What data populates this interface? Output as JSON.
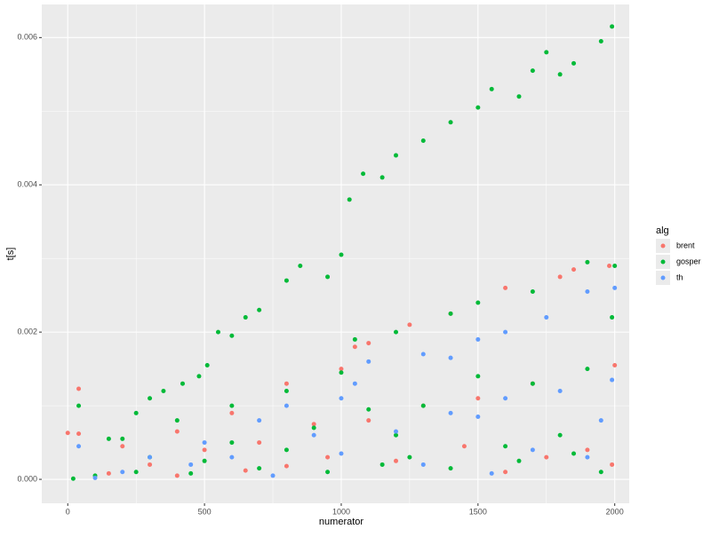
{
  "chart_data": {
    "type": "scatter",
    "x_label": "numerator",
    "y_label": "t[s]",
    "legend_title": "alg",
    "legend_position": "right",
    "xlim": [
      -95,
      2053
    ],
    "xticks": [
      0,
      500,
      1000,
      1500,
      2000
    ],
    "x_minor_ticks": [
      250,
      750,
      1250,
      1750
    ],
    "ylim": [
      -0.000325,
      0.00645
    ],
    "yticks": [
      {
        "value": 0,
        "label": "0.000"
      },
      0.002,
      0.004,
      0.006
    ],
    "y_minor_ticks": [
      0.001,
      0.003,
      0.005
    ],
    "grid": true,
    "series": [
      {
        "name": "brent",
        "color": "#F8766D",
        "x": [
          0,
          40,
          40,
          200,
          400,
          600,
          800,
          1000,
          1050,
          1100,
          1250,
          1400,
          1600,
          1800,
          1980,
          1850,
          500,
          900,
          1300,
          1700,
          2000,
          1500,
          1100,
          700,
          300,
          150,
          650,
          1200,
          1750,
          1900,
          950,
          1450,
          400,
          1600,
          800,
          1990
        ],
        "values": [
          0.00063,
          0.00123,
          0.00062,
          0.00045,
          0.00065,
          0.0009,
          0.0013,
          0.0015,
          0.0018,
          0.00185,
          0.0021,
          0.00225,
          0.0026,
          0.00275,
          0.0029,
          0.00285,
          0.0004,
          0.00075,
          0.001,
          0.0013,
          0.00155,
          0.0011,
          0.0008,
          0.0005,
          0.0002,
          8e-05,
          0.00012,
          0.00025,
          0.0003,
          0.0004,
          0.0003,
          0.00045,
          5e-05,
          0.0001,
          0.00018,
          0.0002
        ]
      },
      {
        "name": "gosper",
        "color": "#00BA38",
        "x": [
          40,
          150,
          250,
          300,
          350,
          420,
          480,
          510,
          550,
          600,
          650,
          700,
          800,
          850,
          950,
          1000,
          1030,
          1080,
          1150,
          1200,
          1300,
          1400,
          1500,
          1550,
          1650,
          1700,
          1750,
          1800,
          1850,
          1950,
          1990,
          200,
          400,
          600,
          800,
          1000,
          1050,
          1200,
          1400,
          1500,
          1700,
          1900,
          2000,
          1990,
          300,
          600,
          900,
          1100,
          1300,
          1500,
          1700,
          1900,
          1200,
          1800,
          100,
          250,
          450,
          700,
          950,
          1150,
          1400,
          1650,
          1950,
          500,
          1250,
          1850,
          20,
          800,
          1600
        ],
        "values": [
          0.001,
          0.00055,
          0.0009,
          0.0011,
          0.0012,
          0.0013,
          0.0014,
          0.00155,
          0.002,
          0.00195,
          0.0022,
          0.0023,
          0.0027,
          0.0029,
          0.00275,
          0.00305,
          0.0038,
          0.00415,
          0.0041,
          0.0044,
          0.0046,
          0.00485,
          0.00505,
          0.0053,
          0.0052,
          0.00555,
          0.0058,
          0.0055,
          0.00565,
          0.00595,
          0.00615,
          0.00055,
          0.0008,
          0.001,
          0.0012,
          0.00145,
          0.0019,
          0.002,
          0.00225,
          0.0024,
          0.00255,
          0.00295,
          0.0029,
          0.0022,
          0.0003,
          0.0005,
          0.0007,
          0.00095,
          0.001,
          0.0014,
          0.0013,
          0.0015,
          0.0006,
          0.0006,
          5e-05,
          0.0001,
          8e-05,
          0.00015,
          0.0001,
          0.0002,
          0.00015,
          0.00025,
          0.0001,
          0.00025,
          0.0003,
          0.00035,
          1e-05,
          0.0004,
          0.00045
        ]
      },
      {
        "name": "th",
        "color": "#619CFF",
        "x": [
          40,
          300,
          500,
          700,
          800,
          1000,
          1050,
          1100,
          1300,
          1400,
          1500,
          1600,
          1750,
          1900,
          2000,
          1400,
          1600,
          1800,
          1990,
          600,
          900,
          1200,
          1500,
          1950,
          200,
          450,
          1000,
          1300,
          1700,
          1900,
          750,
          1550,
          100
        ],
        "values": [
          0.00045,
          0.0003,
          0.0005,
          0.0008,
          0.001,
          0.0011,
          0.0013,
          0.0016,
          0.0017,
          0.00165,
          0.0019,
          0.002,
          0.0022,
          0.00255,
          0.0026,
          0.0009,
          0.0011,
          0.0012,
          0.00135,
          0.0003,
          0.0006,
          0.00065,
          0.00085,
          0.0008,
          0.0001,
          0.0002,
          0.00035,
          0.0002,
          0.0004,
          0.0003,
          5e-05,
          8e-05,
          2e-05
        ]
      }
    ]
  }
}
